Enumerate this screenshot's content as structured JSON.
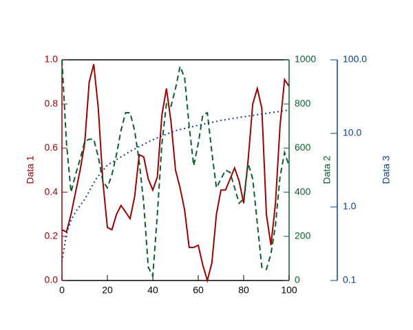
{
  "chart_data": {
    "type": "line",
    "y_label": "Data 1",
    "y2_label": "Data 2",
    "y3_label": "Data 3",
    "x": [
      0,
      2,
      4,
      6,
      8,
      10,
      12,
      14,
      16,
      18,
      20,
      22,
      24,
      26,
      28,
      30,
      32,
      34,
      36,
      38,
      40,
      42,
      44,
      46,
      48,
      50,
      52,
      54,
      56,
      58,
      60,
      62,
      64,
      66,
      68,
      70,
      72,
      74,
      76,
      78,
      80,
      82,
      84,
      86,
      88,
      90,
      92,
      94,
      96,
      98,
      100
    ],
    "xlim": [
      0,
      100
    ],
    "xticks": [
      0,
      20,
      40,
      60,
      80,
      100
    ],
    "ylim": [
      0,
      1
    ],
    "yticks": [
      {
        "value": 0,
        "label": "0.0"
      },
      {
        "value": 0.2,
        "label": "0.2"
      },
      {
        "value": 0.4,
        "label": "0.4"
      },
      {
        "value": 0.6,
        "label": "0.6"
      },
      {
        "value": 0.8,
        "label": "0.8"
      },
      {
        "value": 1,
        "label": "1.0"
      }
    ],
    "y2lim": [
      0,
      1000
    ],
    "y2ticks": [
      0,
      200,
      400,
      600,
      800,
      1000
    ],
    "y3lim": [
      0.1,
      100
    ],
    "y3log": true,
    "y3ticks": [
      0.1,
      {
        "value": 1,
        "label": "1.0"
      },
      {
        "value": 10,
        "label": "10.0"
      },
      {
        "value": 100,
        "label": "100.0"
      }
    ],
    "y_color": "#990000",
    "y2_color": "#0b5e2e",
    "y3_color": "#0a3f8f",
    "series": [
      {
        "color": "#990000",
        "style": "solid",
        "values": [
          0.23,
          0.22,
          0.3,
          0.4,
          0.5,
          0.62,
          0.9,
          0.98,
          0.78,
          0.45,
          0.24,
          0.23,
          0.3,
          0.34,
          0.31,
          0.28,
          0.38,
          0.57,
          0.56,
          0.46,
          0.41,
          0.47,
          0.75,
          0.87,
          0.72,
          0.5,
          0.42,
          0.32,
          0.15,
          0.15,
          0.16,
          0.07,
          0.0,
          0.08,
          0.3,
          0.41,
          0.41,
          0.46,
          0.51,
          0.45,
          0.35,
          0.55,
          0.8,
          0.87,
          0.78,
          0.3,
          0.16,
          0.35,
          0.7,
          0.91,
          0.88
        ]
      },
      {
        "color": "#0b5e2e",
        "style": "dashed",
        "axis": "y2",
        "values": [
          1000,
          620,
          400,
          480,
          550,
          630,
          640,
          640,
          560,
          450,
          420,
          480,
          570,
          680,
          760,
          760,
          680,
          540,
          350,
          60,
          20,
          300,
          620,
          800,
          790,
          870,
          970,
          920,
          700,
          520,
          620,
          750,
          760,
          580,
          420,
          460,
          500,
          490,
          420,
          350,
          370,
          530,
          460,
          260,
          60,
          50,
          120,
          250,
          470,
          580,
          520
        ]
      },
      {
        "color": "#0a3f8f",
        "style": "dotted",
        "axis": "y3",
        "x": [
          0,
          2,
          4,
          6,
          10,
          15,
          20,
          30,
          40,
          50,
          60,
          70,
          80,
          90,
          100
        ],
        "values": [
          0.18,
          0.43,
          0.66,
          0.86,
          1.27,
          2.4,
          3.7,
          5.7,
          8.2,
          10.9,
          12.9,
          15,
          16.8,
          18.7,
          20.8
        ]
      }
    ]
  }
}
